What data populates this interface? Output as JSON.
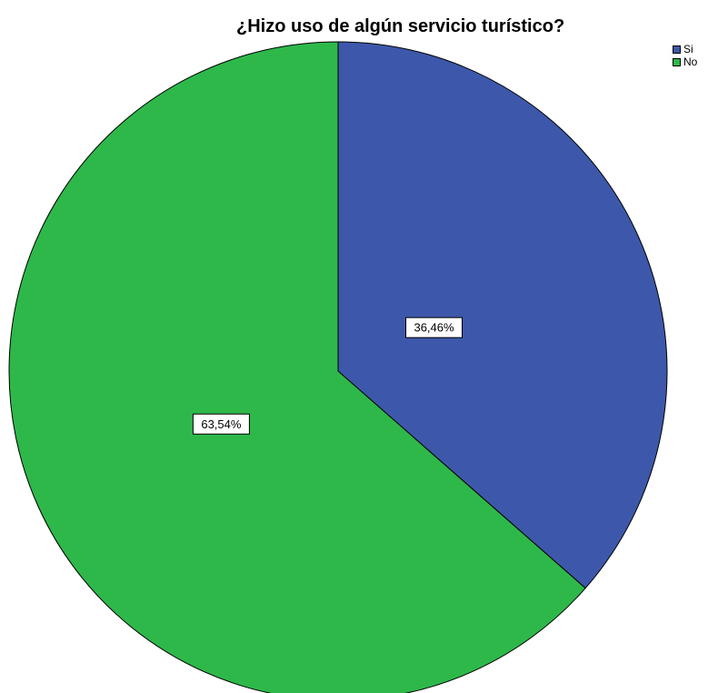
{
  "chart_data": {
    "type": "pie",
    "title": "¿Hizo uso de algún servicio turístico?",
    "slices": [
      {
        "label": "Si",
        "value": 36.46,
        "display": "36,46%",
        "color": "#3D58AA"
      },
      {
        "label": "No",
        "value": 63.54,
        "display": "63,54%",
        "color": "#2EB84A"
      }
    ],
    "legend_position": "top-right",
    "start_angle": "12 o'clock",
    "direction": "clockwise"
  }
}
